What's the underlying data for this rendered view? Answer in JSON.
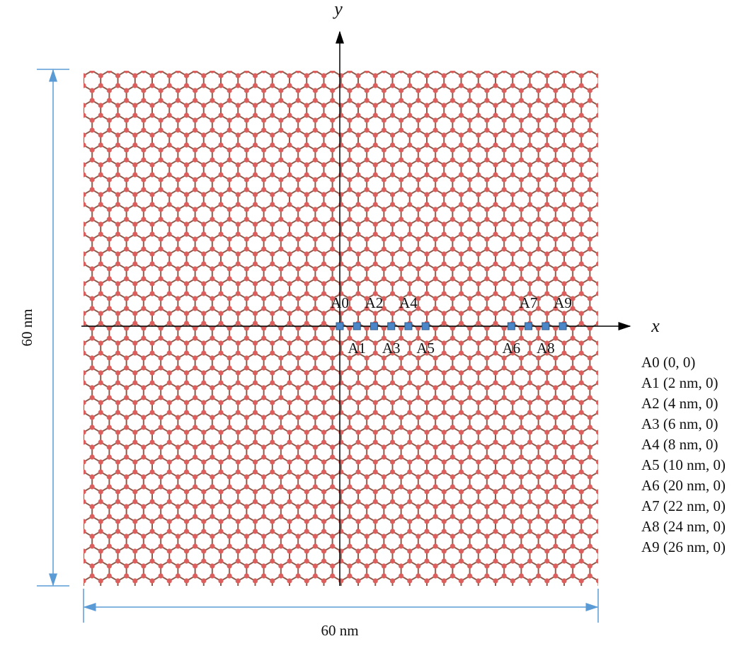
{
  "axes": {
    "x_label": "x",
    "y_label": "y"
  },
  "dimensions": {
    "width_label": "60 nm",
    "height_label": "60 nm"
  },
  "sheet_size_nm": 60,
  "points": [
    {
      "name": "A0",
      "x_nm": 0,
      "legend": "A0 (0, 0)"
    },
    {
      "name": "A1",
      "x_nm": 2,
      "legend": "A1 (2 nm, 0)"
    },
    {
      "name": "A2",
      "x_nm": 4,
      "legend": "A2 (4 nm, 0)"
    },
    {
      "name": "A3",
      "x_nm": 6,
      "legend": "A3 (6 nm, 0)"
    },
    {
      "name": "A4",
      "x_nm": 8,
      "legend": "A4 (8 nm, 0)"
    },
    {
      "name": "A5",
      "x_nm": 10,
      "legend": "A5 (10 nm, 0)"
    },
    {
      "name": "A6",
      "x_nm": 20,
      "legend": "A6 (20 nm, 0)"
    },
    {
      "name": "A7",
      "x_nm": 22,
      "legend": "A7 (22 nm, 0)"
    },
    {
      "name": "A8",
      "x_nm": 24,
      "legend": "A8 (24 nm, 0)"
    },
    {
      "name": "A9",
      "x_nm": 26,
      "legend": "A9 (26 nm, 0)"
    }
  ]
}
